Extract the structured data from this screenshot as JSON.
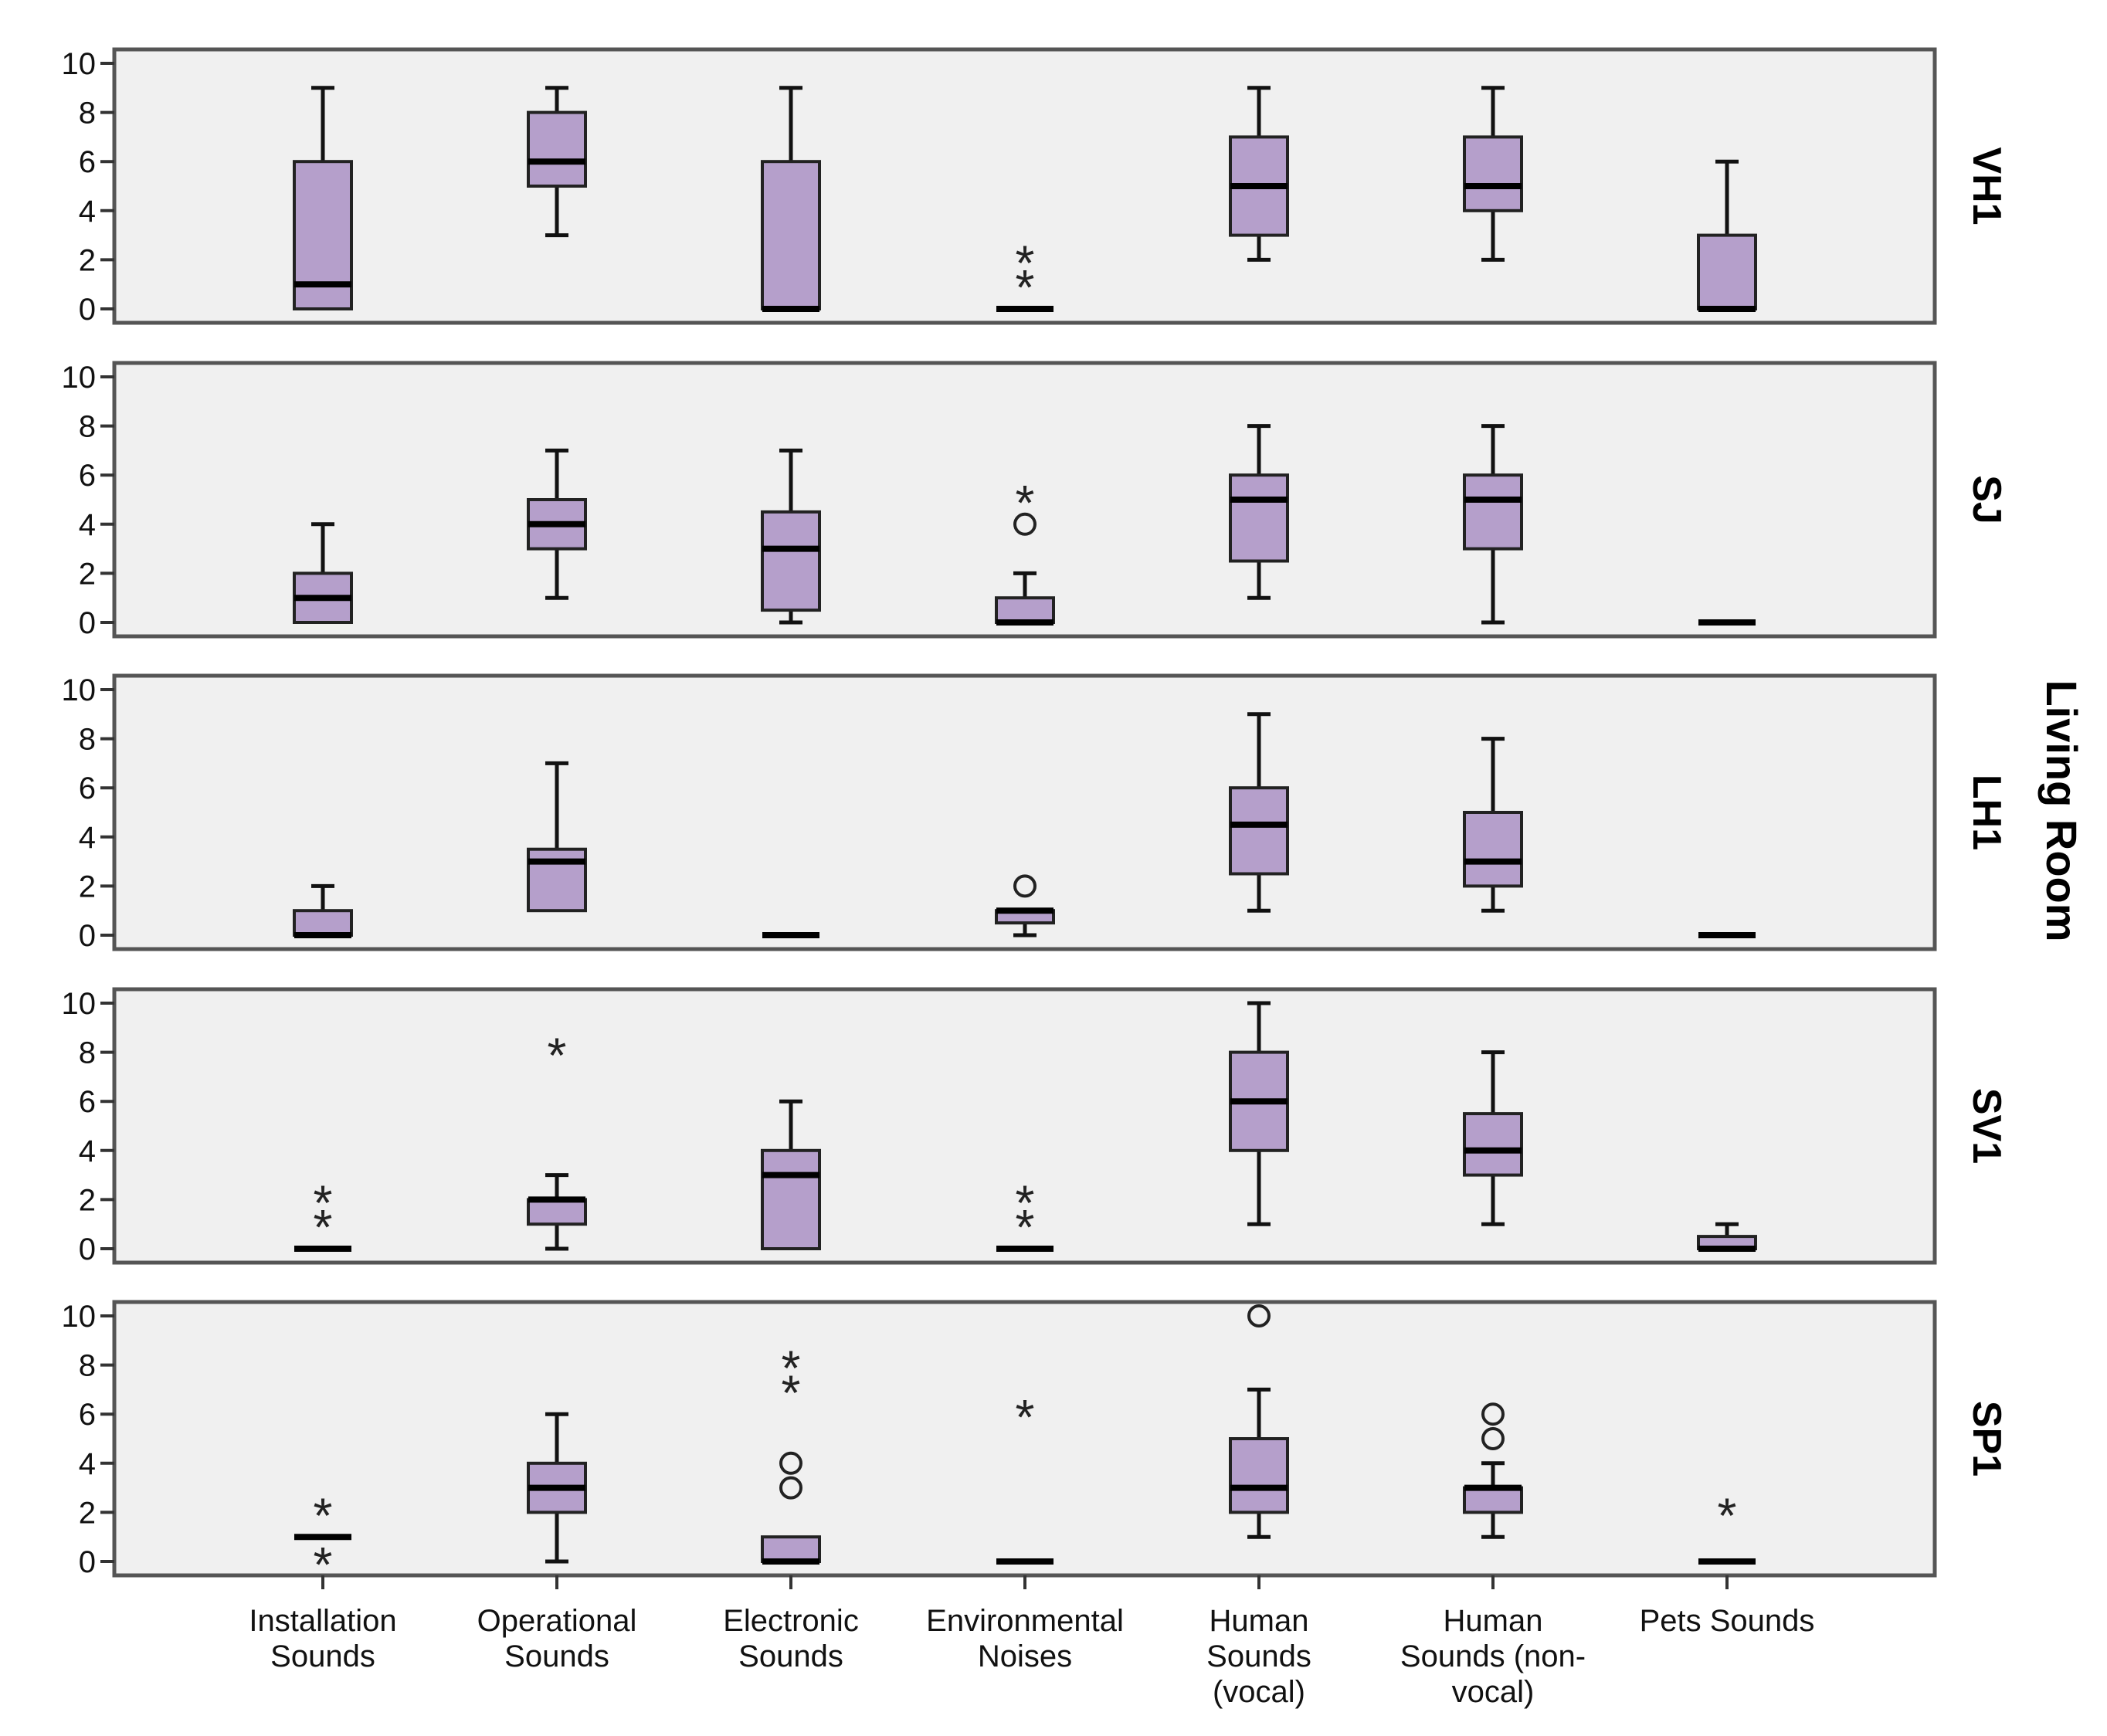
{
  "chart_data": {
    "type": "boxplot",
    "facet_title": "Living Room",
    "categories": [
      [
        "Installation",
        "Sounds"
      ],
      [
        "Operational",
        "Sounds"
      ],
      [
        "Electronic",
        "Sounds"
      ],
      [
        "Environmental",
        "Noises"
      ],
      [
        "Human",
        "Sounds",
        "(vocal)"
      ],
      [
        "Human",
        "Sounds (non-",
        "vocal)"
      ],
      [
        "Pets Sounds"
      ]
    ],
    "yticks": [
      "0",
      "2",
      "4",
      "6",
      "8",
      "10"
    ],
    "ylim": [
      0,
      10
    ],
    "colors": {
      "box_fill": "#b59fcb",
      "box_stroke": "#222222",
      "panel_bg": "#f0f0f0",
      "panel_border": "#555555"
    },
    "panels": [
      {
        "name": "VH1",
        "boxes": [
          {
            "min": 0,
            "q1": 0,
            "median": 1,
            "q3": 6,
            "max": 9,
            "outliers": []
          },
          {
            "min": 3,
            "q1": 5,
            "median": 6,
            "q3": 8,
            "max": 9,
            "outliers": []
          },
          {
            "min": 0,
            "q1": 0,
            "median": 0,
            "q3": 6,
            "max": 9,
            "outliers": []
          },
          {
            "min": 0,
            "q1": 0,
            "median": 0,
            "q3": 0,
            "max": 0,
            "outliers": [
              {
                "v": 2,
                "m": "star"
              },
              {
                "v": 1,
                "m": "star"
              }
            ]
          },
          {
            "min": 2,
            "q1": 3,
            "median": 5,
            "q3": 7,
            "max": 9,
            "outliers": []
          },
          {
            "min": 2,
            "q1": 4,
            "median": 5,
            "q3": 7,
            "max": 9,
            "outliers": []
          },
          {
            "min": 0,
            "q1": 0,
            "median": 0,
            "q3": 3,
            "max": 6,
            "outliers": []
          }
        ]
      },
      {
        "name": "SJ",
        "boxes": [
          {
            "min": 0,
            "q1": 0,
            "median": 1,
            "q3": 2,
            "max": 4,
            "outliers": []
          },
          {
            "min": 1,
            "q1": 3,
            "median": 4,
            "q3": 5,
            "max": 7,
            "outliers": []
          },
          {
            "min": 0,
            "q1": 0.5,
            "median": 3,
            "q3": 4.5,
            "max": 7,
            "outliers": []
          },
          {
            "min": 0,
            "q1": 0,
            "median": 0,
            "q3": 1,
            "max": 2,
            "outliers": [
              {
                "v": 5,
                "m": "star"
              },
              {
                "v": 4,
                "m": "circle"
              }
            ]
          },
          {
            "min": 1,
            "q1": 2.5,
            "median": 5,
            "q3": 6,
            "max": 8,
            "outliers": []
          },
          {
            "min": 0,
            "q1": 3,
            "median": 5,
            "q3": 6,
            "max": 8,
            "outliers": []
          },
          {
            "min": 0,
            "q1": 0,
            "median": 0,
            "q3": 0,
            "max": 0,
            "outliers": []
          }
        ]
      },
      {
        "name": "LH1",
        "boxes": [
          {
            "min": 0,
            "q1": 0,
            "median": 0,
            "q3": 1,
            "max": 2,
            "outliers": []
          },
          {
            "min": 1,
            "q1": 1,
            "median": 3,
            "q3": 3.5,
            "max": 7,
            "outliers": []
          },
          {
            "min": 0,
            "q1": 0,
            "median": 0,
            "q3": 0,
            "max": 0,
            "outliers": []
          },
          {
            "min": 0,
            "q1": 0.5,
            "median": 1,
            "q3": 1,
            "max": 1,
            "outliers": [
              {
                "v": 2,
                "m": "circle"
              }
            ]
          },
          {
            "min": 1,
            "q1": 2.5,
            "median": 4.5,
            "q3": 6,
            "max": 9,
            "outliers": []
          },
          {
            "min": 1,
            "q1": 2,
            "median": 3,
            "q3": 5,
            "max": 8,
            "outliers": []
          },
          {
            "min": 0,
            "q1": 0,
            "median": 0,
            "q3": 0,
            "max": 0,
            "outliers": []
          }
        ]
      },
      {
        "name": "SV1",
        "boxes": [
          {
            "min": 0,
            "q1": 0,
            "median": 0,
            "q3": 0,
            "max": 0,
            "outliers": [
              {
                "v": 2,
                "m": "star"
              },
              {
                "v": 1,
                "m": "star"
              }
            ]
          },
          {
            "min": 0,
            "q1": 1,
            "median": 2,
            "q3": 2,
            "max": 3,
            "outliers": [
              {
                "v": 8,
                "m": "star"
              }
            ]
          },
          {
            "min": 0,
            "q1": 0,
            "median": 3,
            "q3": 4,
            "max": 6,
            "outliers": []
          },
          {
            "min": 0,
            "q1": 0,
            "median": 0,
            "q3": 0,
            "max": 0,
            "outliers": [
              {
                "v": 2,
                "m": "star"
              },
              {
                "v": 1,
                "m": "star"
              }
            ]
          },
          {
            "min": 1,
            "q1": 4,
            "median": 6,
            "q3": 8,
            "max": 10,
            "outliers": []
          },
          {
            "min": 1,
            "q1": 3,
            "median": 4,
            "q3": 5.5,
            "max": 8,
            "outliers": []
          },
          {
            "min": 0,
            "q1": 0,
            "median": 0,
            "q3": 0.5,
            "max": 1,
            "outliers": []
          }
        ]
      },
      {
        "name": "SP1",
        "boxes": [
          {
            "min": 1,
            "q1": 1,
            "median": 1,
            "q3": 1,
            "max": 1,
            "outliers": [
              {
                "v": 2,
                "m": "star"
              },
              {
                "v": 0,
                "m": "star"
              }
            ]
          },
          {
            "min": 0,
            "q1": 2,
            "median": 3,
            "q3": 4,
            "max": 6,
            "outliers": []
          },
          {
            "min": 0,
            "q1": 0,
            "median": 0,
            "q3": 1,
            "max": 1,
            "outliers": [
              {
                "v": 8,
                "m": "star"
              },
              {
                "v": 7,
                "m": "star"
              },
              {
                "v": 4,
                "m": "circle"
              },
              {
                "v": 3,
                "m": "circle"
              }
            ]
          },
          {
            "min": 0,
            "q1": 0,
            "median": 0,
            "q3": 0,
            "max": 0,
            "outliers": [
              {
                "v": 6,
                "m": "star"
              }
            ]
          },
          {
            "min": 1,
            "q1": 2,
            "median": 3,
            "q3": 5,
            "max": 7,
            "outliers": [
              {
                "v": 10,
                "m": "circle"
              }
            ]
          },
          {
            "min": 1,
            "q1": 2,
            "median": 3,
            "q3": 3,
            "max": 4,
            "outliers": [
              {
                "v": 6,
                "m": "circle"
              },
              {
                "v": 5,
                "m": "circle"
              }
            ]
          },
          {
            "min": 0,
            "q1": 0,
            "median": 0,
            "q3": 0,
            "max": 0,
            "outliers": [
              {
                "v": 2,
                "m": "star"
              }
            ]
          }
        ]
      }
    ]
  }
}
